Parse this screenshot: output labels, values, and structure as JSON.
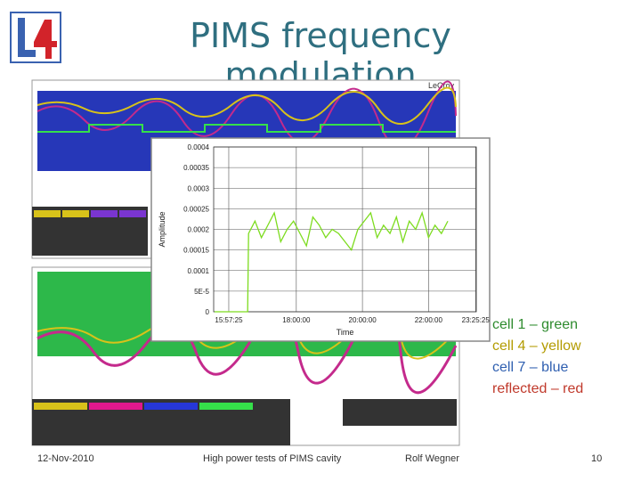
{
  "header": {
    "title": "PIMS frequency modulation"
  },
  "scope": {
    "brand": "LeCroy"
  },
  "inset_chart": {
    "type": "line",
    "ylabel": "Amplitude",
    "xlabel": "Time",
    "x": [
      55900,
      59500,
      59600,
      60300,
      61000,
      61700,
      62400,
      63100,
      63800,
      64500,
      65200,
      65900,
      66600,
      67300,
      68000,
      68700,
      69400,
      70100,
      70800,
      71500,
      72200,
      72900,
      73600,
      74300,
      75000,
      75700,
      76400,
      77100,
      77800,
      78500,
      79200,
      79900,
      80600,
      81300
    ],
    "series": [
      {
        "color": "#7ddc1f",
        "values": [
          0,
          0,
          0.00019,
          0.00022,
          0.00018,
          0.00021,
          0.00024,
          0.00017,
          0.0002,
          0.00022,
          0.00019,
          0.00016,
          0.00023,
          0.00021,
          0.00018,
          0.0002,
          0.00019,
          0.00017,
          0.00015,
          0.0002,
          0.00022,
          0.00024,
          0.00018,
          0.00021,
          0.00019,
          0.00023,
          0.00017,
          0.00022,
          0.0002,
          0.00024,
          0.00018,
          0.00021,
          0.00019,
          0.00022
        ]
      }
    ],
    "xlim": [
      55800,
      84400
    ],
    "xticks": [
      {
        "value": 57445,
        "label": "15:57:25"
      },
      {
        "value": 64800,
        "label": "18:00:00"
      },
      {
        "value": 72000,
        "label": "20:00:00"
      },
      {
        "value": 79200,
        "label": "22:00:00"
      },
      {
        "value": 84325,
        "label": "23:25:25"
      }
    ],
    "ylim": [
      0,
      0.0004
    ],
    "yticks": [
      0,
      {
        "value": 5e-05,
        "label": "5E-5"
      },
      0.0001,
      0.00015,
      0.0002,
      0.00025,
      0.0003,
      0.00035,
      0.0004
    ],
    "grid": true
  },
  "legend": [
    {
      "text": "cell 1 – green",
      "color": "#2e8b2e"
    },
    {
      "text": "cell 4 – yellow",
      "color": "#b39b00"
    },
    {
      "text": "cell 7 – blue",
      "color": "#2f5fb0"
    },
    {
      "text": "reflected – red",
      "color": "#c0392b"
    }
  ],
  "footer": {
    "date": "12-Nov-2010",
    "subject": "High power tests of PIMS cavity",
    "author": "Rolf Wegner",
    "page": "10"
  }
}
